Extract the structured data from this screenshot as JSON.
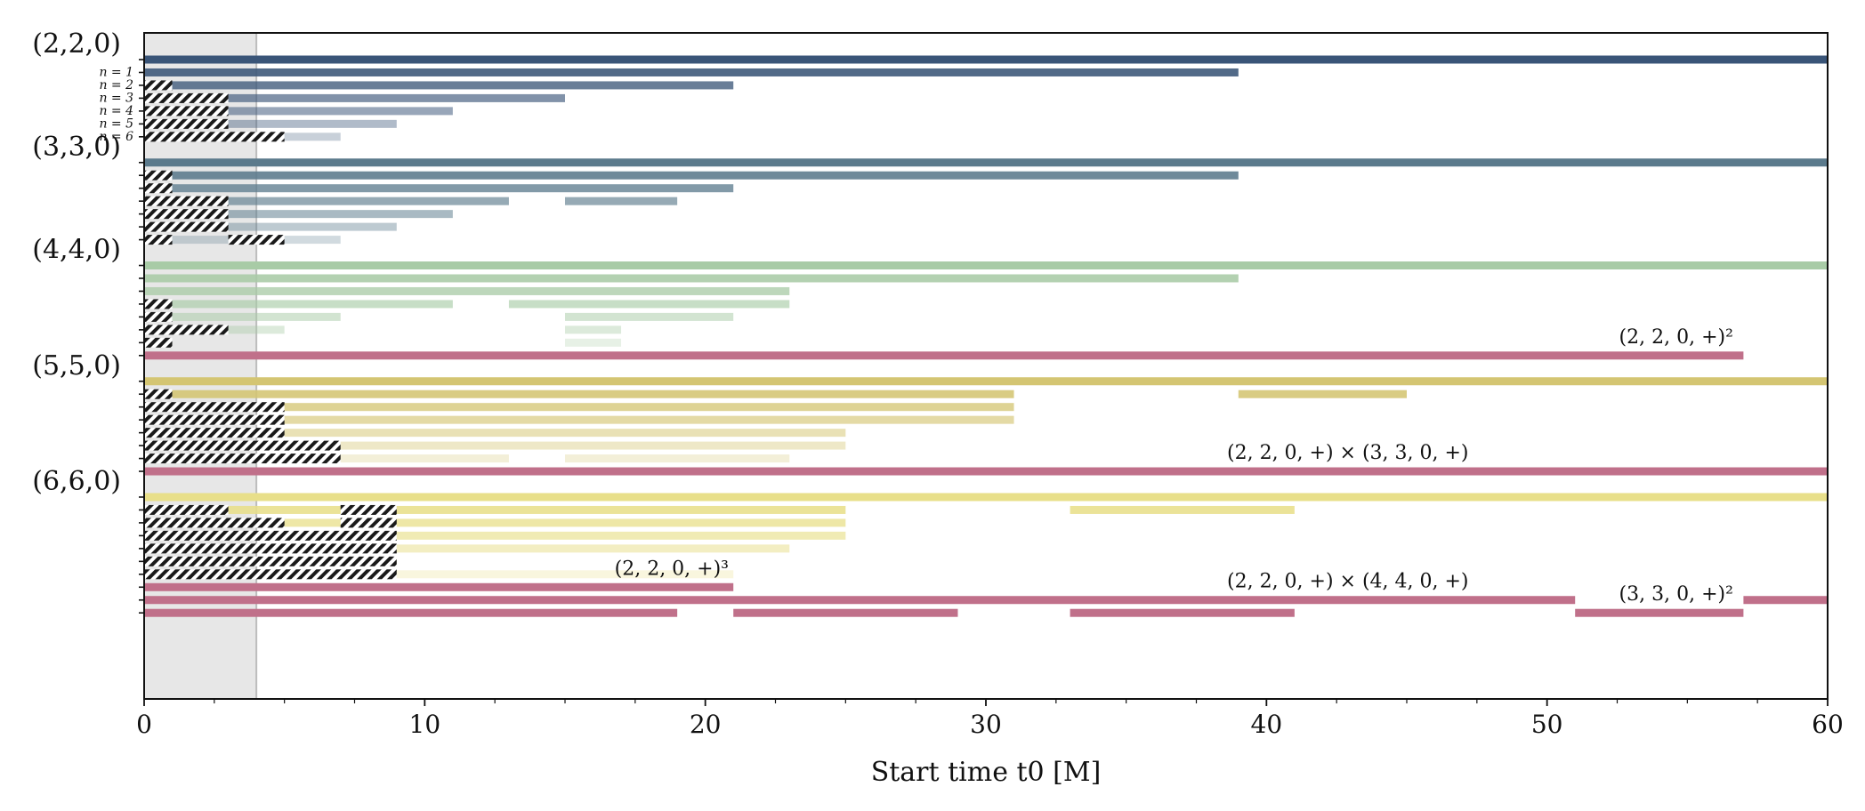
{
  "chart_data": {
    "type": "bar",
    "subtype": "horizontal-interval-timeline",
    "xlabel": "Start time t0 [M]",
    "xlim": [
      0,
      60
    ],
    "x_ticks": [
      0,
      10,
      20,
      30,
      40,
      50,
      60
    ],
    "shaded_region": [
      0,
      4
    ],
    "colors": {
      "g220": "#3a5578",
      "g330": "#5b7a8c",
      "g440": "#a8cba6",
      "g550": "#d4c572",
      "g660": "#e8df8a",
      "quad": "#c0708a",
      "hatch": "#1a1a1a",
      "shade": "#e6e6e6"
    },
    "groups": [
      {
        "name": "(2,2,0)",
        "color_key": "g220",
        "rows": [
          {
            "label": "",
            "segments": [
              [
                0,
                60
              ]
            ],
            "hatch": [],
            "alpha": 1.0
          },
          {
            "label": "n = 1",
            "segments": [
              [
                0,
                39
              ]
            ],
            "hatch": [],
            "alpha": 0.88
          },
          {
            "label": "n = 2",
            "segments": [
              [
                0,
                21
              ]
            ],
            "hatch": [
              [
                0,
                1
              ]
            ],
            "alpha": 0.76
          },
          {
            "label": "n = 3",
            "segments": [
              [
                0,
                15
              ]
            ],
            "hatch": [
              [
                0,
                3
              ]
            ],
            "alpha": 0.64
          },
          {
            "label": "n = 4",
            "segments": [
              [
                0,
                11
              ]
            ],
            "hatch": [
              [
                0,
                3
              ]
            ],
            "alpha": 0.52
          },
          {
            "label": "n = 5",
            "segments": [
              [
                0,
                9
              ]
            ],
            "hatch": [
              [
                0,
                3
              ]
            ],
            "alpha": 0.4
          },
          {
            "label": "n = 6",
            "segments": [
              [
                0,
                7
              ]
            ],
            "hatch": [
              [
                0,
                5
              ]
            ],
            "alpha": 0.28
          }
        ]
      },
      {
        "name": "(3,3,0)",
        "color_key": "g330",
        "rows": [
          {
            "label": "",
            "segments": [
              [
                0,
                60
              ]
            ],
            "hatch": [],
            "alpha": 1.0
          },
          {
            "label": "",
            "segments": [
              [
                0,
                39
              ]
            ],
            "hatch": [
              [
                0,
                1
              ]
            ],
            "alpha": 0.88
          },
          {
            "label": "",
            "segments": [
              [
                0,
                21
              ]
            ],
            "hatch": [
              [
                0,
                1
              ]
            ],
            "alpha": 0.76
          },
          {
            "label": "",
            "segments": [
              [
                0,
                13
              ],
              [
                15,
                19
              ]
            ],
            "hatch": [
              [
                0,
                3
              ]
            ],
            "alpha": 0.64
          },
          {
            "label": "",
            "segments": [
              [
                0,
                11
              ]
            ],
            "hatch": [
              [
                0,
                3
              ]
            ],
            "alpha": 0.52
          },
          {
            "label": "",
            "segments": [
              [
                0,
                9
              ]
            ],
            "hatch": [
              [
                0,
                3
              ]
            ],
            "alpha": 0.4
          },
          {
            "label": "",
            "segments": [
              [
                0,
                7
              ]
            ],
            "hatch": [
              [
                0,
                1
              ],
              [
                3,
                5
              ]
            ],
            "alpha": 0.28
          }
        ]
      },
      {
        "name": "(4,4,0)",
        "color_key": "g440",
        "rows": [
          {
            "label": "",
            "segments": [
              [
                0,
                60
              ]
            ],
            "hatch": [],
            "alpha": 1.0
          },
          {
            "label": "",
            "segments": [
              [
                0,
                39
              ]
            ],
            "hatch": [],
            "alpha": 0.88
          },
          {
            "label": "",
            "segments": [
              [
                0,
                23
              ]
            ],
            "hatch": [],
            "alpha": 0.76
          },
          {
            "label": "",
            "segments": [
              [
                0,
                11
              ],
              [
                13,
                23
              ]
            ],
            "hatch": [
              [
                0,
                1
              ]
            ],
            "alpha": 0.64
          },
          {
            "label": "",
            "segments": [
              [
                0,
                7
              ],
              [
                15,
                21
              ]
            ],
            "hatch": [
              [
                0,
                1
              ]
            ],
            "alpha": 0.52
          },
          {
            "label": "",
            "segments": [
              [
                0,
                5
              ],
              [
                15,
                17
              ]
            ],
            "hatch": [
              [
                0,
                3
              ]
            ],
            "alpha": 0.4
          },
          {
            "label": "",
            "segments": [
              [
                0,
                1
              ],
              [
                15,
                17
              ]
            ],
            "hatch": [
              [
                0,
                1
              ]
            ],
            "alpha": 0.28
          },
          {
            "label": "",
            "segments": [
              [
                0,
                57
              ]
            ],
            "hatch": [],
            "alpha": 1.0,
            "quadratic": true,
            "annotation": "(2, 2, 0, +)²",
            "annotation_x": 54.6
          }
        ]
      },
      {
        "name": "(5,5,0)",
        "color_key": "g550",
        "rows": [
          {
            "label": "",
            "segments": [
              [
                0,
                60
              ]
            ],
            "hatch": [],
            "alpha": 1.0
          },
          {
            "label": "",
            "segments": [
              [
                0,
                31
              ],
              [
                39,
                45
              ]
            ],
            "hatch": [
              [
                0,
                1
              ]
            ],
            "alpha": 0.88
          },
          {
            "label": "",
            "segments": [
              [
                0,
                31
              ]
            ],
            "hatch": [
              [
                0,
                5
              ]
            ],
            "alpha": 0.76
          },
          {
            "label": "",
            "segments": [
              [
                0,
                31
              ]
            ],
            "hatch": [
              [
                0,
                5
              ]
            ],
            "alpha": 0.64
          },
          {
            "label": "",
            "segments": [
              [
                0,
                25
              ]
            ],
            "hatch": [
              [
                0,
                5
              ]
            ],
            "alpha": 0.52
          },
          {
            "label": "",
            "segments": [
              [
                0,
                25
              ]
            ],
            "hatch": [
              [
                0,
                7
              ]
            ],
            "alpha": 0.4
          },
          {
            "label": "",
            "segments": [
              [
                0,
                13
              ],
              [
                15,
                23
              ]
            ],
            "hatch": [
              [
                0,
                7
              ]
            ],
            "alpha": 0.28
          },
          {
            "label": "",
            "segments": [
              [
                0,
                60
              ]
            ],
            "hatch": [],
            "alpha": 1.0,
            "quadratic": true,
            "annotation": "(2, 2, 0, +) × (3, 3, 0, +)",
            "annotation_x": 42.9
          }
        ]
      },
      {
        "name": "(6,6,0)",
        "color_key": "g660",
        "rows": [
          {
            "label": "",
            "segments": [
              [
                0,
                60
              ]
            ],
            "hatch": [],
            "alpha": 1.0
          },
          {
            "label": "",
            "segments": [
              [
                0,
                25
              ],
              [
                33,
                41
              ]
            ],
            "hatch": [
              [
                0,
                3
              ],
              [
                7,
                9
              ]
            ],
            "alpha": 0.88
          },
          {
            "label": "",
            "segments": [
              [
                0,
                25
              ]
            ],
            "hatch": [
              [
                0,
                5
              ],
              [
                7,
                9
              ]
            ],
            "alpha": 0.76
          },
          {
            "label": "",
            "segments": [
              [
                0,
                25
              ]
            ],
            "hatch": [
              [
                0,
                9
              ]
            ],
            "alpha": 0.64
          },
          {
            "label": "",
            "segments": [
              [
                0,
                23
              ]
            ],
            "hatch": [
              [
                0,
                9
              ]
            ],
            "alpha": 0.52
          },
          {
            "label": "",
            "segments": [
              [
                0,
                9
              ]
            ],
            "hatch": [
              [
                0,
                9
              ]
            ],
            "alpha": 0.4
          },
          {
            "label": "",
            "segments": [
              [
                0,
                21
              ]
            ],
            "hatch": [
              [
                0,
                9
              ]
            ],
            "alpha": 0.28
          },
          {
            "label": "",
            "segments": [
              [
                0,
                21
              ]
            ],
            "hatch": [],
            "alpha": 1.0,
            "quadratic": true,
            "annotation": "(2, 2, 0, +)³",
            "annotation_x": 18.8
          },
          {
            "label": "",
            "segments": [
              [
                0,
                51
              ],
              [
                57,
                60
              ]
            ],
            "hatch": [],
            "alpha": 1.0,
            "quadratic": true,
            "annotation": "(2, 2, 0, +) × (4, 4, 0, +)",
            "annotation_x": 42.9
          },
          {
            "label": "",
            "segments": [
              [
                0,
                19
              ],
              [
                21,
                29
              ],
              [
                33,
                41
              ],
              [
                51,
                57
              ]
            ],
            "hatch": [],
            "alpha": 1.0,
            "quadratic": true,
            "annotation": "(3, 3, 0, +)²",
            "annotation_x": 54.6
          }
        ]
      }
    ]
  }
}
